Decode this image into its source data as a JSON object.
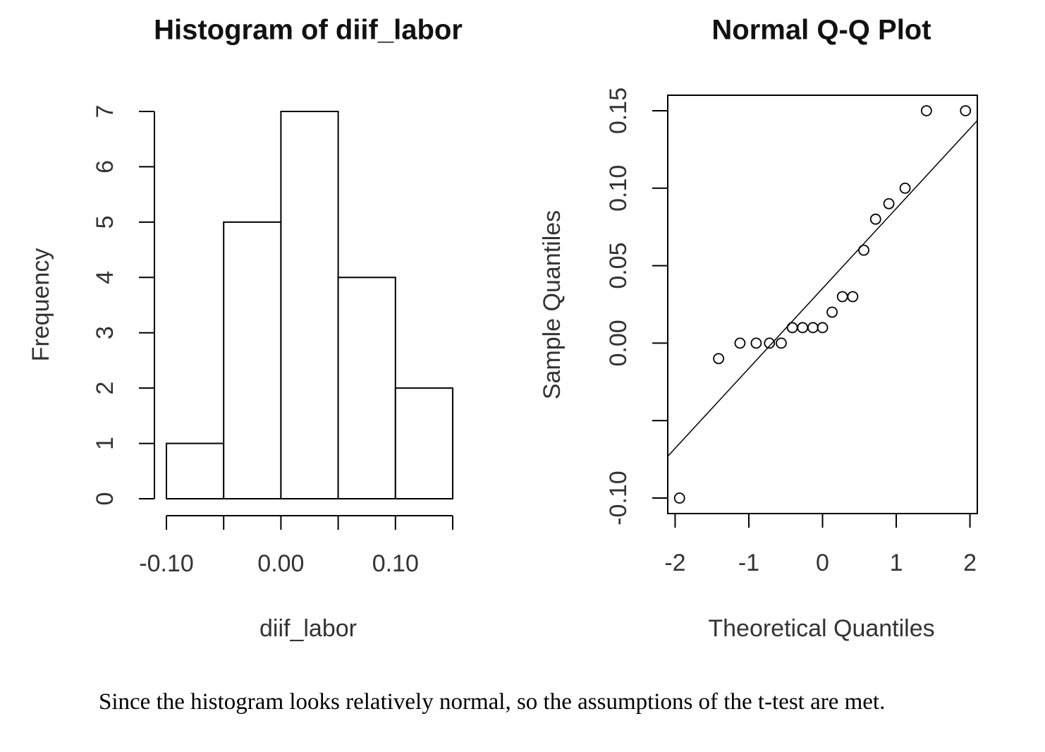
{
  "chart_data": [
    {
      "type": "histogram",
      "title": "Histogram of diif_labor",
      "x_label": "diif_labor",
      "y_label": "Frequency",
      "bins": [
        -0.1,
        -0.05,
        0.0,
        0.05,
        0.1,
        0.15
      ],
      "values": [
        1,
        5,
        7,
        4,
        2
      ],
      "color": "#ffffff",
      "xlim": [
        -0.1,
        0.15
      ],
      "xticks": [
        {
          "value": -0.1,
          "label": "-0.10"
        },
        {
          "value": 0.0,
          "label": "0.00"
        },
        {
          "value": 0.1,
          "label": "0.10"
        }
      ],
      "minor_xticks": [
        -0.05,
        0.05,
        0.15
      ],
      "ylim": [
        0,
        7
      ],
      "yticks": [
        0,
        1,
        2,
        3,
        4,
        5,
        6,
        7
      ]
    },
    {
      "type": "scatter",
      "title": "Normal Q-Q Plot",
      "x_label": "Theoretical Quantiles",
      "y_label": "Sample Quantiles",
      "x": [
        -1.94,
        -1.41,
        -1.12,
        -0.9,
        -0.72,
        -0.56,
        -0.41,
        -0.27,
        -0.13,
        0,
        0.13,
        0.27,
        0.41,
        0.56,
        0.72,
        0.9,
        1.12,
        1.41,
        1.94
      ],
      "values": [
        -0.1,
        -0.01,
        0,
        0,
        0,
        0,
        0.01,
        0.01,
        0.01,
        0.01,
        0.02,
        0.03,
        0.03,
        0.06,
        0.08,
        0.09,
        0.1,
        0.15,
        0.15
      ],
      "color": "#000000",
      "reference_line": {
        "intercept": 0.0353,
        "slope": 0.0516
      },
      "xlim": [
        -2.1,
        2.1
      ],
      "xticks": [
        -2,
        -1,
        0,
        1,
        2
      ],
      "ylim": [
        -0.11,
        0.16
      ],
      "yticks": [
        {
          "value": -0.1,
          "label": "-0.10"
        },
        {
          "value": 0.0,
          "label": "0.00"
        },
        {
          "value": 0.05,
          "label": "0.05"
        },
        {
          "value": 0.1,
          "label": "0.10"
        },
        {
          "value": 0.15,
          "label": "0.15"
        }
      ],
      "minor_yticks": [
        -0.05
      ]
    }
  ],
  "caption": "Since the histogram looks relatively normal, so the assumptions of the t-test are met."
}
